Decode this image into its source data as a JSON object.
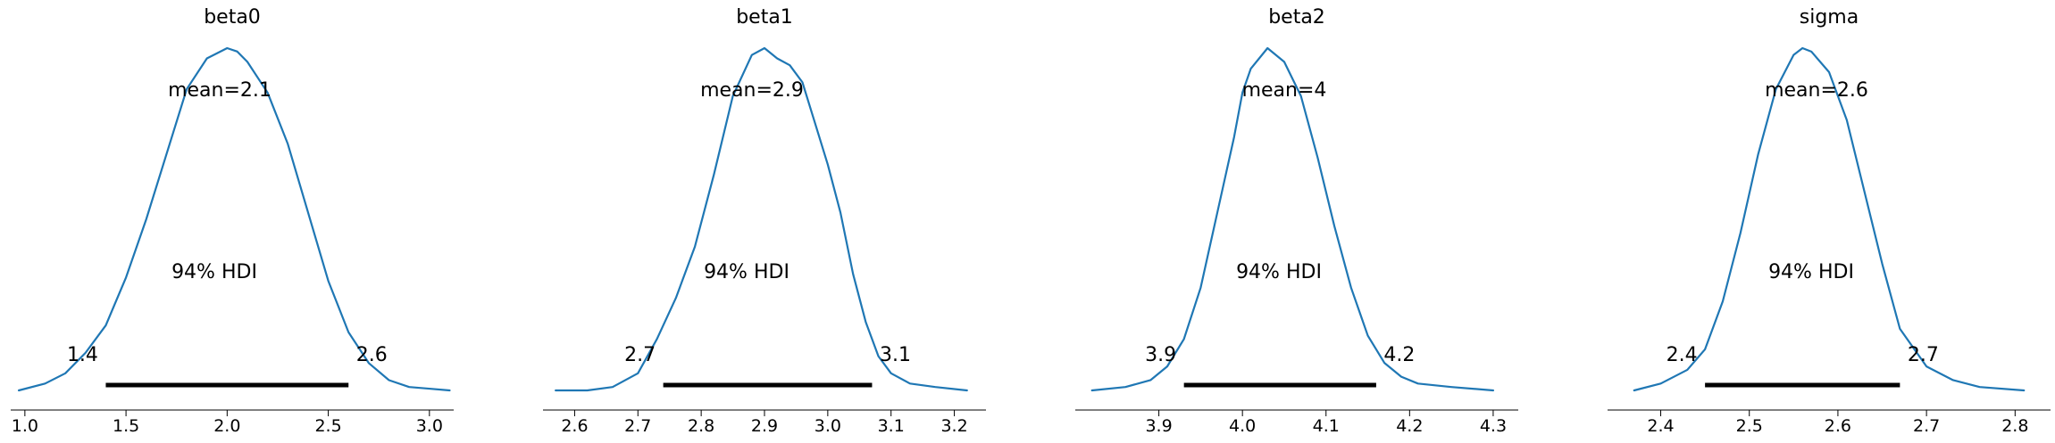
{
  "colors": {
    "density": "#1f77b4",
    "hdi": "#000000",
    "axis": "#000000"
  },
  "chart_data": [
    {
      "type": "line",
      "title": "beta0",
      "mean_label": "mean=2.1",
      "hdi_label": "94% HDI",
      "hdi": [
        1.4,
        2.6
      ],
      "hdi_low_label": "1.4",
      "hdi_high_label": "2.6",
      "xlim": [
        0.93,
        3.12
      ],
      "xticks": [
        1.0,
        1.5,
        2.0,
        2.5,
        3.0
      ],
      "xtick_labels": [
        "1.0",
        "1.5",
        "2.0",
        "2.5",
        "3.0"
      ],
      "x": [
        0.97,
        1.1,
        1.2,
        1.3,
        1.4,
        1.5,
        1.6,
        1.7,
        1.8,
        1.9,
        2.0,
        2.05,
        2.1,
        2.2,
        2.3,
        2.4,
        2.5,
        2.6,
        2.7,
        2.8,
        2.9,
        3.0,
        3.1
      ],
      "density": [
        0.0,
        0.02,
        0.05,
        0.11,
        0.19,
        0.33,
        0.5,
        0.69,
        0.88,
        0.97,
        1.0,
        0.99,
        0.96,
        0.87,
        0.72,
        0.52,
        0.32,
        0.17,
        0.08,
        0.03,
        0.01,
        0.005,
        0.0
      ]
    },
    {
      "type": "line",
      "title": "beta1",
      "mean_label": "mean=2.9",
      "hdi_label": "94% HDI",
      "hdi": [
        2.74,
        3.07
      ],
      "hdi_low_label": "2.7",
      "hdi_high_label": "3.1",
      "xlim": [
        2.55,
        3.25
      ],
      "xticks": [
        2.6,
        2.7,
        2.8,
        2.9,
        3.0,
        3.1,
        3.2
      ],
      "xtick_labels": [
        "2.6",
        "2.7",
        "2.8",
        "2.9",
        "3.0",
        "3.1",
        "3.2"
      ],
      "x": [
        2.57,
        2.62,
        2.66,
        2.7,
        2.73,
        2.76,
        2.79,
        2.82,
        2.85,
        2.88,
        2.9,
        2.92,
        2.94,
        2.96,
        2.98,
        3.0,
        3.02,
        3.04,
        3.06,
        3.08,
        3.1,
        3.13,
        3.17,
        3.22
      ],
      "density": [
        0.0,
        0.0,
        0.01,
        0.05,
        0.15,
        0.27,
        0.42,
        0.63,
        0.86,
        0.98,
        1.0,
        0.97,
        0.95,
        0.9,
        0.78,
        0.66,
        0.52,
        0.34,
        0.2,
        0.1,
        0.05,
        0.02,
        0.01,
        0.0
      ]
    },
    {
      "type": "line",
      "title": "beta2",
      "mean_label": "mean=4",
      "hdi_label": "94% HDI",
      "hdi": [
        3.93,
        4.16
      ],
      "hdi_low_label": "3.9",
      "hdi_high_label": "4.2",
      "xlim": [
        3.8,
        4.33
      ],
      "xticks": [
        3.9,
        4.0,
        4.1,
        4.2,
        4.3
      ],
      "xtick_labels": [
        "3.9",
        "4.0",
        "4.1",
        "4.2",
        "4.3"
      ],
      "x": [
        3.82,
        3.86,
        3.89,
        3.91,
        3.93,
        3.95,
        3.97,
        3.99,
        4.0,
        4.01,
        4.03,
        4.05,
        4.07,
        4.09,
        4.11,
        4.13,
        4.15,
        4.17,
        4.19,
        4.21,
        4.25,
        4.3
      ],
      "density": [
        0.0,
        0.01,
        0.03,
        0.07,
        0.15,
        0.3,
        0.52,
        0.74,
        0.87,
        0.94,
        1.0,
        0.96,
        0.86,
        0.68,
        0.48,
        0.3,
        0.16,
        0.08,
        0.04,
        0.02,
        0.01,
        0.0
      ]
    },
    {
      "type": "line",
      "title": "sigma",
      "mean_label": "mean=2.6",
      "hdi_label": "94% HDI",
      "hdi": [
        2.45,
        2.67
      ],
      "hdi_low_label": "2.4",
      "hdi_high_label": "2.7",
      "xlim": [
        2.34,
        2.84
      ],
      "xticks": [
        2.4,
        2.5,
        2.6,
        2.7,
        2.8
      ],
      "xtick_labels": [
        "2.4",
        "2.5",
        "2.6",
        "2.7",
        "2.8"
      ],
      "x": [
        2.37,
        2.4,
        2.43,
        2.45,
        2.47,
        2.49,
        2.51,
        2.53,
        2.55,
        2.56,
        2.57,
        2.59,
        2.61,
        2.63,
        2.65,
        2.67,
        2.7,
        2.73,
        2.76,
        2.81
      ],
      "density": [
        0.0,
        0.02,
        0.06,
        0.12,
        0.26,
        0.46,
        0.69,
        0.88,
        0.98,
        1.0,
        0.99,
        0.93,
        0.79,
        0.58,
        0.37,
        0.18,
        0.07,
        0.03,
        0.01,
        0.0
      ]
    }
  ]
}
